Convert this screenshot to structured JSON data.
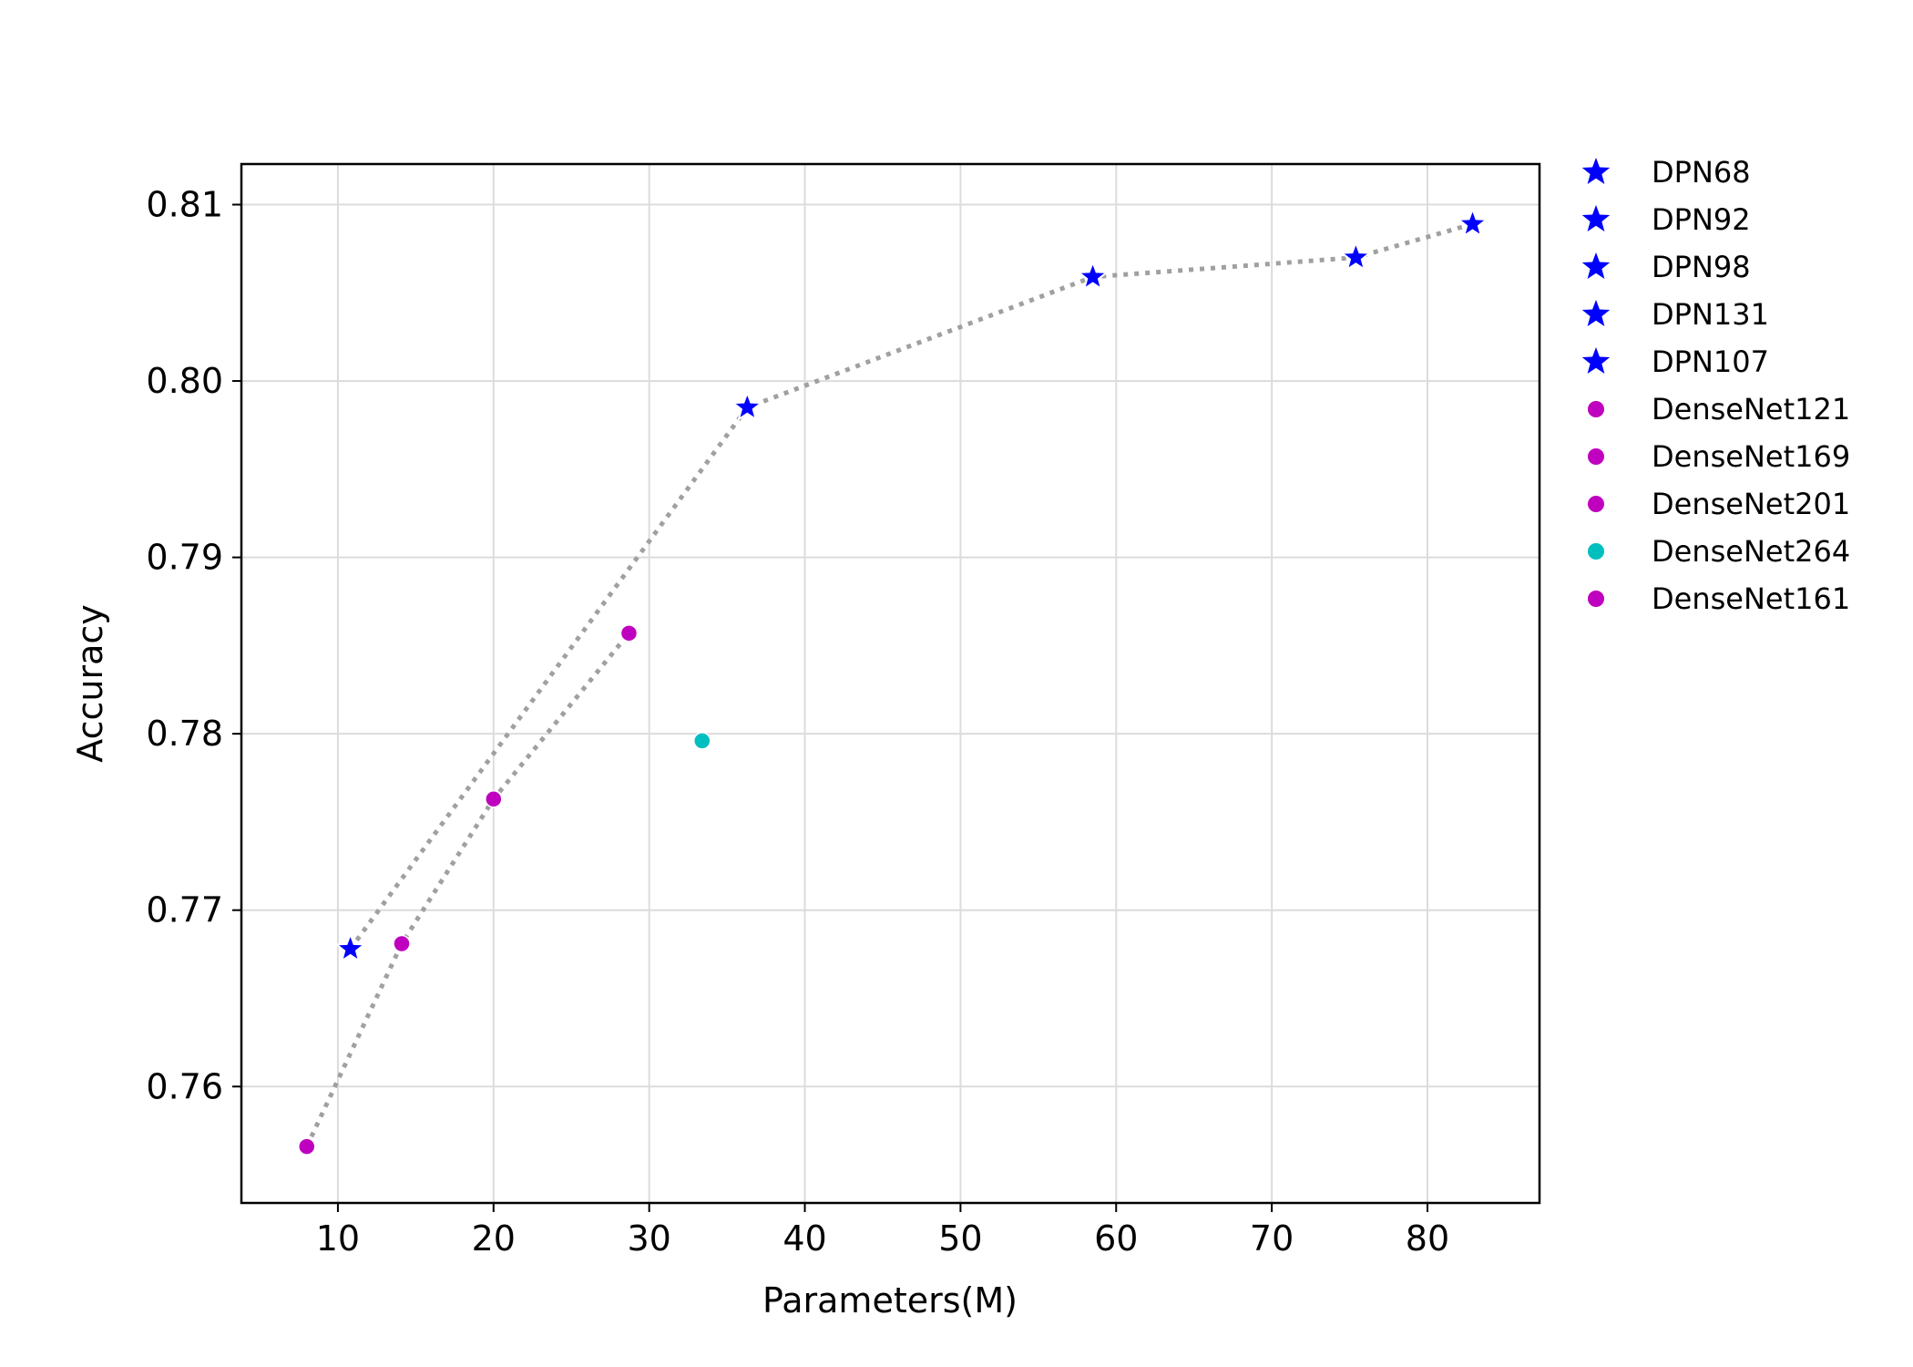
{
  "chart_data": {
    "type": "scatter",
    "title": "",
    "xlabel": "Parameters(M)",
    "ylabel": "Accuracy",
    "xlim": [
      3.8,
      87.2
    ],
    "ylim": [
      0.7534,
      0.8123
    ],
    "xticks": [
      10,
      20,
      30,
      40,
      50,
      60,
      70,
      80
    ],
    "xtick_labels": [
      "10",
      "20",
      "30",
      "40",
      "50",
      "60",
      "70",
      "80"
    ],
    "yticks": [
      0.76,
      0.77,
      0.78,
      0.79,
      0.8,
      0.81
    ],
    "ytick_labels": [
      "0.76",
      "0.77",
      "0.78",
      "0.79",
      "0.80",
      "0.81"
    ],
    "grid": true,
    "legend_position": "outside-right",
    "series": [
      {
        "name": "DPN68",
        "marker": "star",
        "color": "#0000ff",
        "x": 10.8,
        "y": 0.7678
      },
      {
        "name": "DPN92",
        "marker": "star",
        "color": "#0000ff",
        "x": 36.3,
        "y": 0.7985
      },
      {
        "name": "DPN98",
        "marker": "star",
        "color": "#0000ff",
        "x": 58.5,
        "y": 0.8059
      },
      {
        "name": "DPN131",
        "marker": "star",
        "color": "#0000ff",
        "x": 75.4,
        "y": 0.807
      },
      {
        "name": "DPN107",
        "marker": "star",
        "color": "#0000ff",
        "x": 82.9,
        "y": 0.8089
      },
      {
        "name": "DenseNet121",
        "marker": "circle",
        "color": "#bf00bf",
        "x": 8.0,
        "y": 0.7566
      },
      {
        "name": "DenseNet169",
        "marker": "circle",
        "color": "#bf00bf",
        "x": 14.1,
        "y": 0.7681
      },
      {
        "name": "DenseNet201",
        "marker": "circle",
        "color": "#bf00bf",
        "x": 20.0,
        "y": 0.7763
      },
      {
        "name": "DenseNet264",
        "marker": "circle",
        "color": "#00bfbf",
        "x": 33.4,
        "y": 0.7796
      },
      {
        "name": "DenseNet161",
        "marker": "circle",
        "color": "#bf00bf",
        "x": 28.7,
        "y": 0.7857
      }
    ],
    "trend_lines": [
      {
        "color": "#a0a0a0",
        "style": "dotted",
        "points": [
          [
            10.8,
            0.7678
          ],
          [
            36.3,
            0.7985
          ],
          [
            58.5,
            0.8059
          ],
          [
            75.4,
            0.807
          ],
          [
            82.9,
            0.8089
          ]
        ]
      },
      {
        "color": "#a0a0a0",
        "style": "dotted",
        "points": [
          [
            8.0,
            0.7566
          ],
          [
            14.1,
            0.7681
          ],
          [
            20.0,
            0.7763
          ],
          [
            28.7,
            0.7857
          ]
        ]
      }
    ]
  }
}
